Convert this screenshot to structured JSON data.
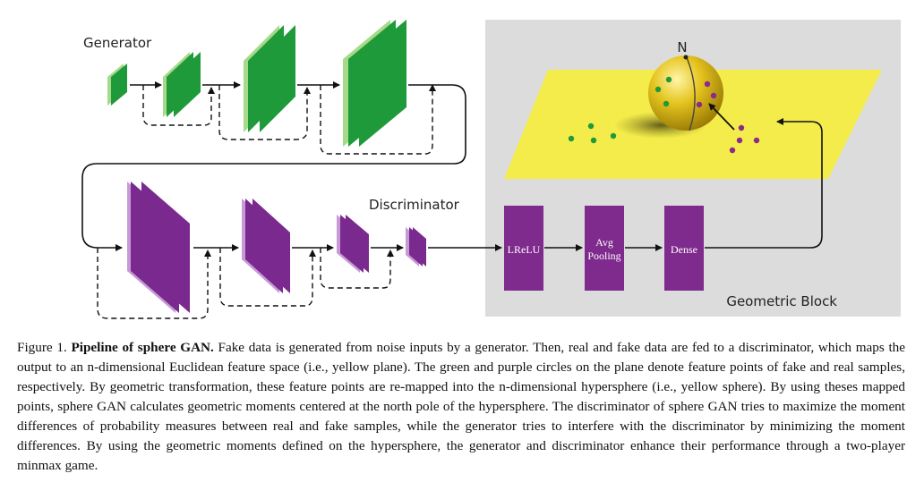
{
  "figure": {
    "generator_label": "Generator",
    "discriminator_label": "Discriminator",
    "geometric_block_label": "Geometric Block",
    "north_label": "N",
    "blocks": {
      "lrelu": "LReLU",
      "avg_line1": "Avg",
      "avg_line2": "Pooling",
      "dense": "Dense"
    },
    "colors": {
      "generator_front": "#1f9a3a",
      "generator_side": "#a7d98a",
      "discriminator_front": "#7a2a8f",
      "discriminator_side": "#c79ad6",
      "block_purple": "#7f2a8d",
      "plane_yellow": "#f3ec4a",
      "sphere_yellow": "#e2c31a",
      "panel_gray": "#dcdcdc",
      "fake_dot_green": "#1f9a3a",
      "real_dot_purple": "#8c2a8a"
    }
  },
  "caption": {
    "prefix": "Figure 1. ",
    "title": "Pipeline of sphere GAN.",
    "body": " Fake data is generated from noise inputs by a generator.  Then, real and fake data are fed to a discriminator, which maps the output to an n-dimensional Euclidean feature space (i.e., yellow plane). The green and purple circles on the plane denote feature points of fake and real samples, respectively. By geometric transformation, these feature points are re-mapped into the n-dimensional hypersphere (i.e., yellow sphere). By using theses mapped points, sphere GAN calculates geometric moments centered at the north pole of the hypersphere. The discriminator of sphere GAN tries to maximize the moment differences of probability measures between real and fake samples, while the generator tries to interfere with the discriminator by minimizing the moment differences. By using the geometric moments defined on the hypersphere, the generator and discriminator enhance their performance through a two-player minmax game."
  }
}
